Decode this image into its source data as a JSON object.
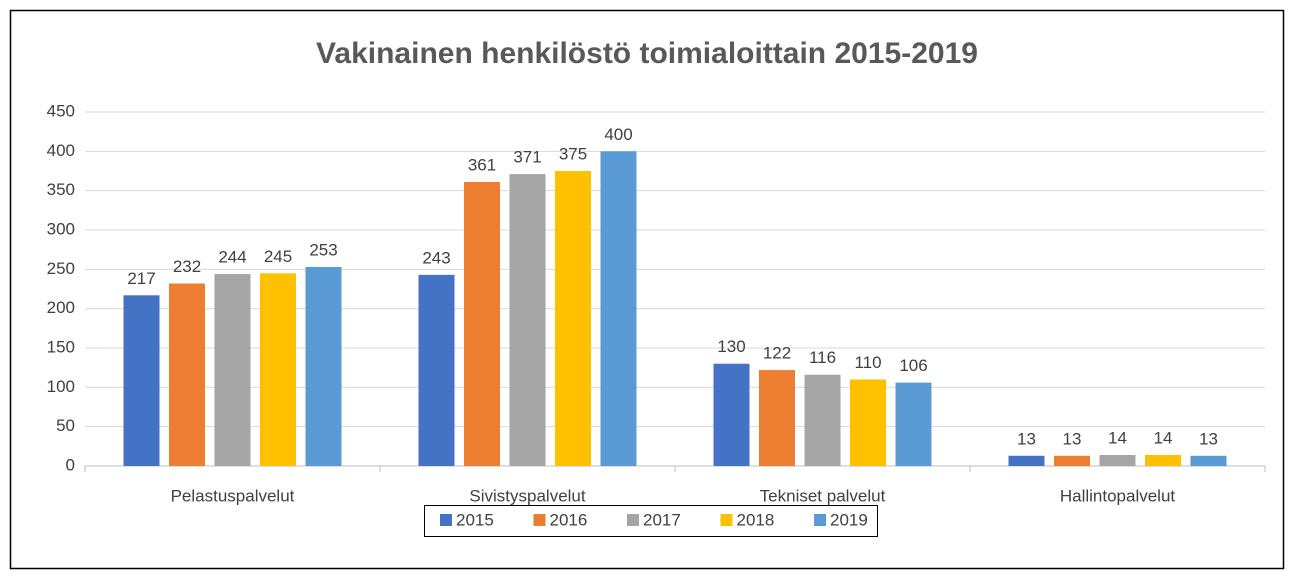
{
  "chart_data": {
    "type": "bar",
    "title": "Vakinainen henkilöstö toimialoittain 2015-2019",
    "categories": [
      "Pelastuspalvelut",
      "Sivistyspalvelut",
      "Tekniset palvelut",
      "Hallintopalvelut"
    ],
    "series": [
      {
        "name": "2015",
        "color": "#4472c4",
        "values": [
          217,
          243,
          130,
          13
        ]
      },
      {
        "name": "2016",
        "color": "#ed7d31",
        "values": [
          232,
          361,
          122,
          13
        ]
      },
      {
        "name": "2017",
        "color": "#a5a5a5",
        "values": [
          244,
          371,
          116,
          14
        ]
      },
      {
        "name": "2018",
        "color": "#ffc000",
        "values": [
          245,
          375,
          110,
          14
        ]
      },
      {
        "name": "2019",
        "color": "#5b9bd5",
        "values": [
          253,
          400,
          106,
          13
        ]
      }
    ],
    "ylim": [
      0,
      450
    ],
    "yticks": [
      0,
      50,
      100,
      150,
      200,
      250,
      300,
      350,
      400,
      450
    ],
    "grid": true,
    "legend": "bottom"
  }
}
